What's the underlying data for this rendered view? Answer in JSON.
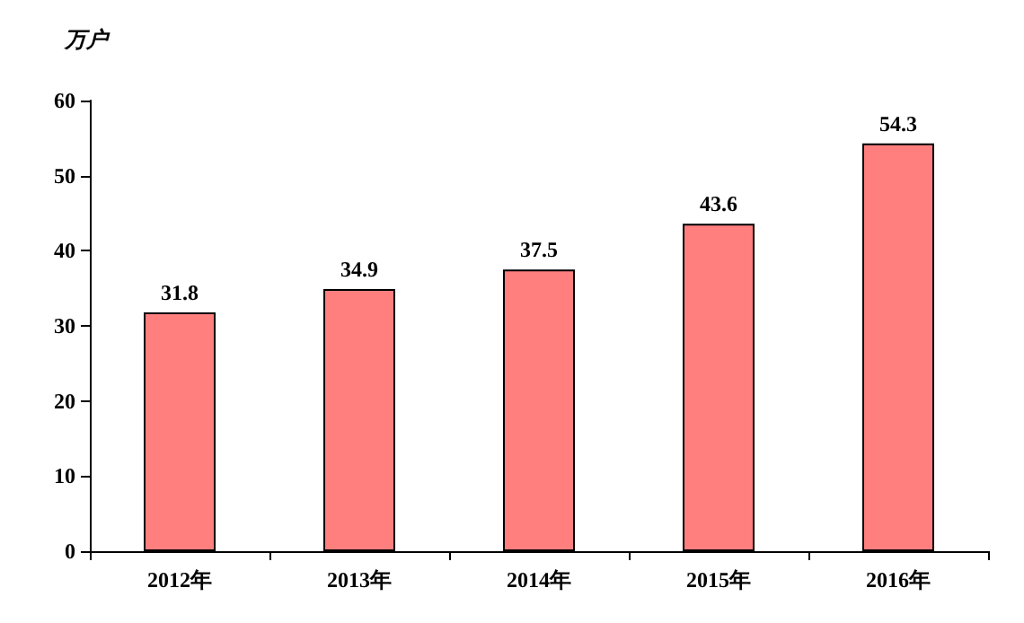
{
  "chart_data": {
    "type": "bar",
    "ylabel": "万户",
    "categories": [
      "2012年",
      "2013年",
      "2014年",
      "2015年",
      "2016年"
    ],
    "values": [
      31.8,
      34.9,
      37.5,
      43.6,
      54.3
    ],
    "color": "#ff7f7f",
    "ylim": [
      0,
      60
    ],
    "yticks": [
      0,
      10,
      20,
      30,
      40,
      50,
      60
    ],
    "grid": false,
    "data_labels": true
  }
}
